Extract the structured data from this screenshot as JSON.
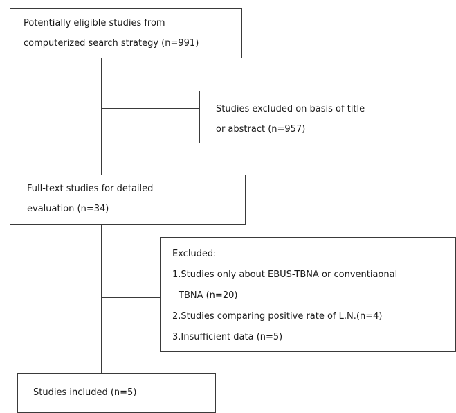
{
  "flow": {
    "identified": {
      "lines": [
        "Potentially eligible studies from",
        "computerized search strategy  (n=991)"
      ]
    },
    "excluded_screening": {
      "lines": [
        "Studies excluded on basis of title",
        "or abstract (n=957)"
      ]
    },
    "full_text": {
      "lines": [
        "Full-text studies for detailed",
        "evaluation  (n=34)"
      ]
    },
    "excluded_full_text": {
      "heading": "Excluded:",
      "reason1_line1": "1.Studies only about EBUS-TBNA or conventiaonal",
      "reason1_line2": "TBNA (n=20)",
      "reason2": "2.Studies comparing positive rate of L.N.(n=4)",
      "reason3": "3.Insufficient data (n=5)"
    },
    "included": {
      "label": "Studies included (n=5)"
    }
  }
}
